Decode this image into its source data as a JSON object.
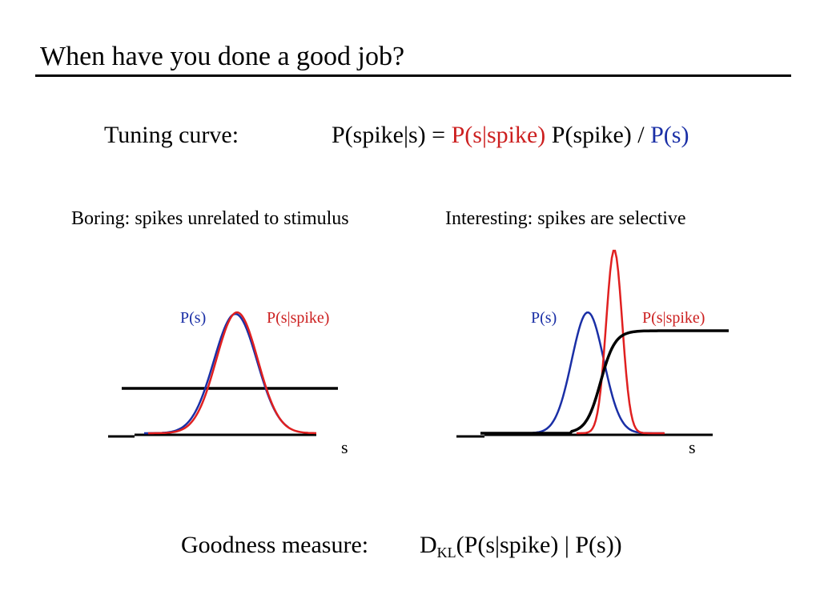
{
  "slide": {
    "title": "When have you done a good job?",
    "tuning_label": "Tuning curve:",
    "formula": {
      "lhs": "P(spike|s) = ",
      "likelihood": "P(s|spike)",
      "middle": " P(spike) / ",
      "prior": "P(s)"
    },
    "boring_caption": "Boring: spikes unrelated to stimulus",
    "interesting_caption": "Interesting: spikes are selective",
    "left_panel": {
      "prior_label": "P(s)",
      "likelihood_label": "P(s|spike)",
      "axis_label": "s"
    },
    "right_panel": {
      "prior_label": "P(s)",
      "likelihood_label": "P(s|spike)",
      "axis_label": "s"
    },
    "goodness_label": "Goodness measure:",
    "dkl": {
      "base": "D",
      "sub": "KL",
      "args": "(P(s|spike) | P(s))"
    }
  },
  "colors": {
    "prior": "#1a2fa6",
    "likelihood": "#e02020",
    "tuning": "#000000"
  }
}
